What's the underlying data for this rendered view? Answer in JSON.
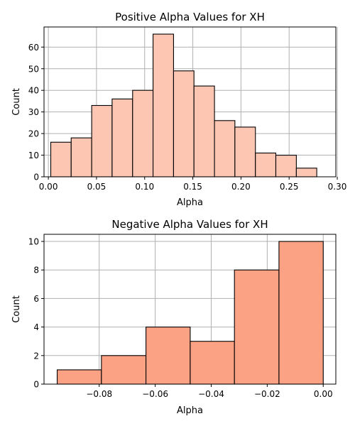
{
  "chart_data": [
    {
      "type": "bar",
      "title": "Positive Alpha Values for XH",
      "xlabel": "Alpha",
      "ylabel": "Count",
      "xlim": [
        -0.0045,
        0.2985
      ],
      "ylim": [
        0,
        69.3
      ],
      "xticks": [
        0.0,
        0.05,
        0.1,
        0.15,
        0.2,
        0.25,
        0.3
      ],
      "xtick_labels": [
        "0.00",
        "0.05",
        "0.10",
        "0.15",
        "0.20",
        "0.25",
        "0.30"
      ],
      "yticks": [
        0,
        10,
        20,
        30,
        40,
        50,
        60
      ],
      "ytick_labels": [
        "0",
        "10",
        "20",
        "30",
        "40",
        "50",
        "60"
      ],
      "grid": true,
      "bar_color": "#fcc6b2",
      "bins": [
        {
          "x0": 0.0025,
          "x1": 0.0237,
          "count": 16
        },
        {
          "x0": 0.0237,
          "x1": 0.045,
          "count": 18
        },
        {
          "x0": 0.045,
          "x1": 0.0662,
          "count": 33
        },
        {
          "x0": 0.0662,
          "x1": 0.0875,
          "count": 36
        },
        {
          "x0": 0.0875,
          "x1": 0.1087,
          "count": 40
        },
        {
          "x0": 0.1087,
          "x1": 0.13,
          "count": 66
        },
        {
          "x0": 0.13,
          "x1": 0.1512,
          "count": 49
        },
        {
          "x0": 0.1512,
          "x1": 0.1725,
          "count": 42
        },
        {
          "x0": 0.1725,
          "x1": 0.1937,
          "count": 26
        },
        {
          "x0": 0.1937,
          "x1": 0.215,
          "count": 23
        },
        {
          "x0": 0.215,
          "x1": 0.2362,
          "count": 11
        },
        {
          "x0": 0.2362,
          "x1": 0.2575,
          "count": 10
        },
        {
          "x0": 0.2575,
          "x1": 0.2787,
          "count": 4
        }
      ]
    },
    {
      "type": "bar",
      "title": "Negative Alpha Values for XH",
      "xlabel": "Alpha",
      "ylabel": "Count",
      "xlim": [
        -0.0997,
        0.0045
      ],
      "ylim": [
        0,
        10.5
      ],
      "xticks": [
        -0.08,
        -0.06,
        -0.04,
        -0.02,
        0.0
      ],
      "xtick_labels": [
        "−0.08",
        "−0.06",
        "−0.04",
        "−0.02",
        "0.00"
      ],
      "yticks": [
        0,
        2,
        4,
        6,
        8,
        10
      ],
      "ytick_labels": [
        "0",
        "2",
        "4",
        "6",
        "8",
        "10"
      ],
      "grid": true,
      "bar_color": "#fca284",
      "bins": [
        {
          "x0": -0.095,
          "x1": -0.0792,
          "count": 1
        },
        {
          "x0": -0.0792,
          "x1": -0.0633,
          "count": 2
        },
        {
          "x0": -0.0633,
          "x1": -0.0475,
          "count": 4
        },
        {
          "x0": -0.0475,
          "x1": -0.0317,
          "count": 3
        },
        {
          "x0": -0.0317,
          "x1": -0.0158,
          "count": 8
        },
        {
          "x0": -0.0158,
          "x1": 0.0,
          "count": 10
        }
      ]
    }
  ]
}
